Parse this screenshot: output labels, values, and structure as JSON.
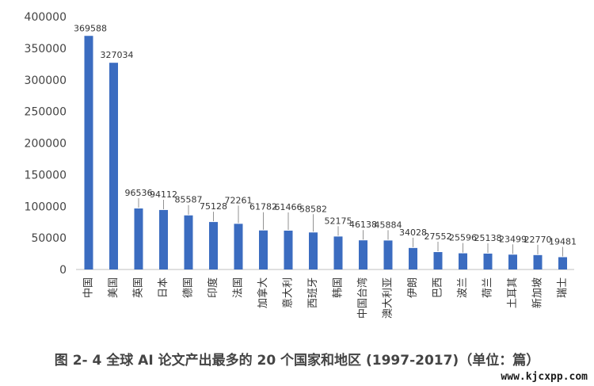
{
  "chart_data": {
    "type": "bar",
    "categories": [
      "中国",
      "美国",
      "英国",
      "日本",
      "德国",
      "印度",
      "法国",
      "加拿大",
      "意大利",
      "西班牙",
      "韩国",
      "中国台湾",
      "澳大利亚",
      "伊朗",
      "巴西",
      "波兰",
      "荷兰",
      "土耳其",
      "新加坡",
      "瑞士"
    ],
    "values": [
      369588,
      327034,
      96536,
      94112,
      85587,
      75128,
      72261,
      61782,
      61466,
      58582,
      52175,
      46138,
      45884,
      34028,
      27552,
      25596,
      25138,
      23499,
      22770,
      19481
    ],
    "data_labels": [
      "369588",
      "327034",
      "96536",
      "94112",
      "85587",
      "75128",
      "72261",
      "61782",
      "61466",
      "58582",
      "52175",
      "46138",
      "45884",
      "34028",
      "27552",
      "25596",
      "25138",
      "23499",
      "22770",
      "19481"
    ],
    "yticks": [
      "0",
      "50000",
      "100000",
      "150000",
      "200000",
      "250000",
      "300000",
      "350000",
      "400000"
    ],
    "ylim": [
      0,
      400000
    ],
    "bar_color": "#3b6cc0",
    "grid": false,
    "title": ""
  },
  "caption": "图 2- 4 全球 AI 论文产出最多的 20 个国家和地区 (1997-2017)（单位：篇）",
  "watermark": "www.kjcxpp.com"
}
